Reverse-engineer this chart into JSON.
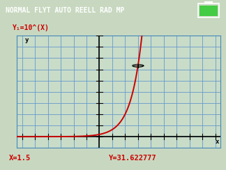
{
  "title": "NORMAL FLYT AUTO REELL RAD MP",
  "formula": "Y₁=10^(X)",
  "bg_outer": "#c8d8c0",
  "bg_inner": "#c8dcc8",
  "header_bg": "#505050",
  "header_text_color": "#ffffff",
  "header_fontsize": 7.0,
  "grid_color": "#6699cc",
  "axis_color": "#000000",
  "curve_color": "#cc0000",
  "formula_color": "#cc0000",
  "status_color": "#cc0000",
  "x_label": "x",
  "y_label": "y",
  "xmin": -3.2,
  "xmax": 4.7,
  "ymin": -5,
  "ymax": 45,
  "x_grid_step": 0.5,
  "y_grid_step": 5,
  "cursor_x": 1.5,
  "cursor_y": 31.622777,
  "status_x": "X=1.5",
  "status_y": "Y=31.622777",
  "battery_color": "#44cc44"
}
